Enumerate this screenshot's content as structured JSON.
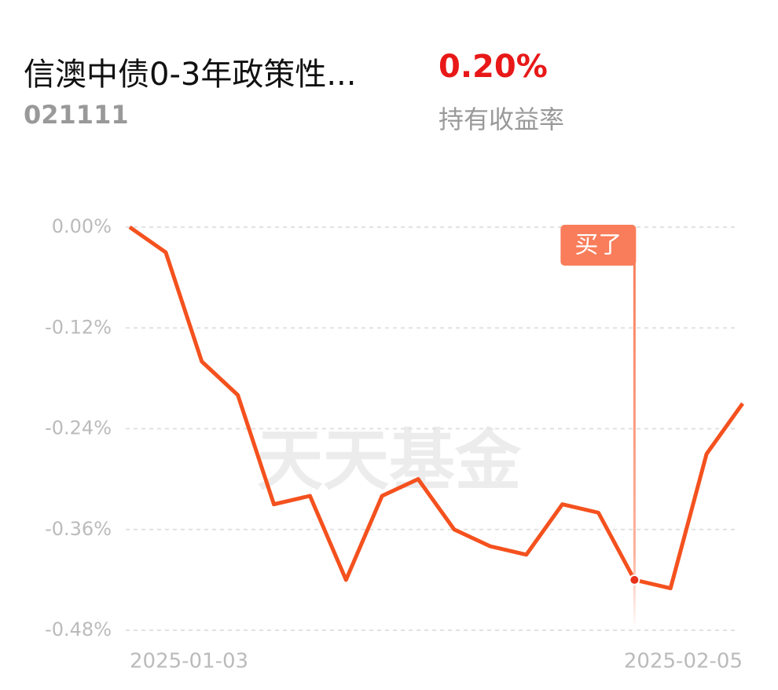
{
  "header": {
    "title": "信澳中债0-3年政策性...",
    "code": "021111",
    "return_value": "0.20%",
    "return_label": "持有收益率"
  },
  "chart_data": {
    "type": "line",
    "watermark": "天天基金",
    "categories": [
      "2025-01-03",
      null,
      null,
      null,
      null,
      null,
      null,
      null,
      null,
      null,
      null,
      null,
      null,
      null,
      null,
      null,
      null,
      "2025-02-05"
    ],
    "series": [
      {
        "name": "持有收益率",
        "color": "#f4511e",
        "values": [
          0,
          -0.03,
          -0.16,
          -0.2,
          -0.33,
          -0.32,
          -0.42,
          -0.32,
          -0.3,
          -0.36,
          -0.38,
          -0.39,
          -0.33,
          -0.34,
          -0.42,
          -0.43,
          -0.27,
          -0.21
        ]
      }
    ],
    "ylim": [
      -0.48,
      0
    ],
    "yticks": [
      {
        "value": 0,
        "label": "0.00%"
      },
      {
        "value": -0.12,
        "label": "-0.12%"
      },
      {
        "value": -0.24,
        "label": "-0.24%"
      },
      {
        "value": -0.36,
        "label": "-0.36%"
      },
      {
        "value": -0.48,
        "label": "-0.48%"
      }
    ],
    "grid": true,
    "annotation": {
      "text": "买了",
      "index": 14,
      "color": "#f97d5a"
    }
  }
}
